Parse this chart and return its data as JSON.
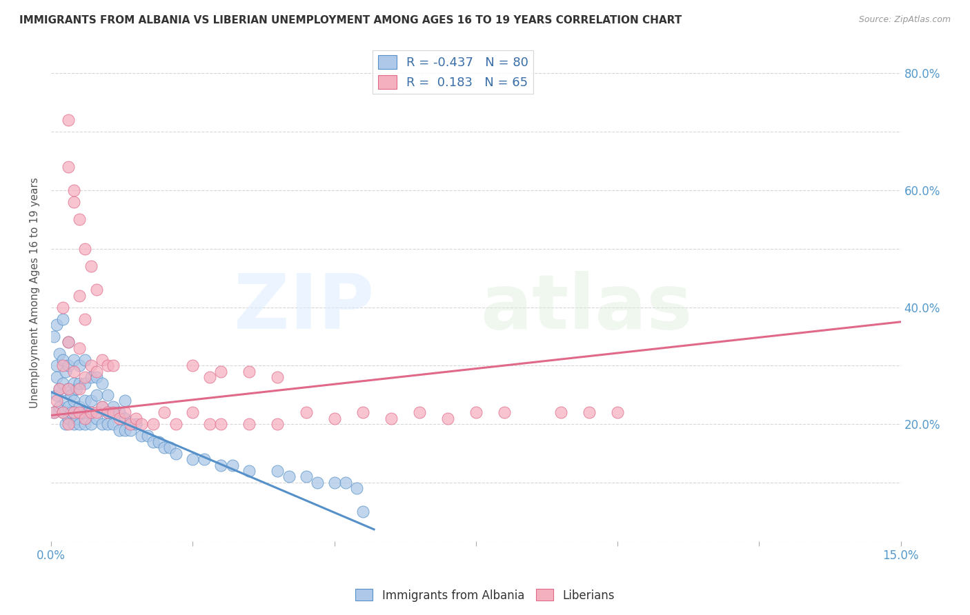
{
  "title": "IMMIGRANTS FROM ALBANIA VS LIBERIAN UNEMPLOYMENT AMONG AGES 16 TO 19 YEARS CORRELATION CHART",
  "source": "Source: ZipAtlas.com",
  "ylabel": "Unemployment Among Ages 16 to 19 years",
  "xlim": [
    0.0,
    0.15
  ],
  "ylim": [
    0.0,
    0.85
  ],
  "albania_R": -0.437,
  "albania_N": 80,
  "liberian_R": 0.183,
  "liberian_N": 65,
  "albania_color": "#adc8e8",
  "albania_edge_color": "#5590c8",
  "liberian_color": "#f5b0c0",
  "liberian_edge_color": "#e06888",
  "background_color": "#ffffff",
  "albania_scatter_x": [
    0.0005,
    0.001,
    0.001,
    0.001,
    0.0015,
    0.0015,
    0.0015,
    0.002,
    0.002,
    0.002,
    0.0025,
    0.0025,
    0.0025,
    0.003,
    0.003,
    0.003,
    0.003,
    0.003,
    0.0035,
    0.0035,
    0.004,
    0.004,
    0.004,
    0.004,
    0.0045,
    0.0045,
    0.005,
    0.005,
    0.005,
    0.005,
    0.0055,
    0.006,
    0.006,
    0.006,
    0.006,
    0.0065,
    0.007,
    0.007,
    0.007,
    0.008,
    0.008,
    0.008,
    0.009,
    0.009,
    0.009,
    0.01,
    0.01,
    0.01,
    0.011,
    0.011,
    0.012,
    0.012,
    0.013,
    0.013,
    0.013,
    0.014,
    0.015,
    0.016,
    0.017,
    0.018,
    0.019,
    0.02,
    0.021,
    0.022,
    0.025,
    0.027,
    0.03,
    0.032,
    0.035,
    0.04,
    0.042,
    0.045,
    0.047,
    0.05,
    0.052,
    0.054,
    0.055,
    0.0005,
    0.001,
    0.002
  ],
  "albania_scatter_y": [
    0.22,
    0.25,
    0.28,
    0.3,
    0.23,
    0.26,
    0.32,
    0.22,
    0.27,
    0.31,
    0.2,
    0.24,
    0.29,
    0.21,
    0.23,
    0.26,
    0.3,
    0.34,
    0.22,
    0.25,
    0.2,
    0.24,
    0.27,
    0.31,
    0.21,
    0.26,
    0.2,
    0.23,
    0.27,
    0.3,
    0.22,
    0.2,
    0.24,
    0.27,
    0.31,
    0.22,
    0.2,
    0.24,
    0.28,
    0.21,
    0.25,
    0.28,
    0.2,
    0.23,
    0.27,
    0.2,
    0.22,
    0.25,
    0.2,
    0.23,
    0.19,
    0.22,
    0.19,
    0.21,
    0.24,
    0.19,
    0.2,
    0.18,
    0.18,
    0.17,
    0.17,
    0.16,
    0.16,
    0.15,
    0.14,
    0.14,
    0.13,
    0.13,
    0.12,
    0.12,
    0.11,
    0.11,
    0.1,
    0.1,
    0.1,
    0.09,
    0.05,
    0.35,
    0.37,
    0.38
  ],
  "liberian_scatter_x": [
    0.0005,
    0.001,
    0.0015,
    0.002,
    0.002,
    0.003,
    0.003,
    0.003,
    0.004,
    0.004,
    0.005,
    0.005,
    0.005,
    0.006,
    0.006,
    0.007,
    0.007,
    0.008,
    0.008,
    0.009,
    0.009,
    0.01,
    0.01,
    0.011,
    0.011,
    0.012,
    0.013,
    0.014,
    0.015,
    0.016,
    0.018,
    0.02,
    0.022,
    0.025,
    0.025,
    0.028,
    0.028,
    0.03,
    0.03,
    0.035,
    0.035,
    0.04,
    0.04,
    0.045,
    0.05,
    0.055,
    0.06,
    0.065,
    0.07,
    0.075,
    0.08,
    0.09,
    0.095,
    0.1,
    0.003,
    0.004,
    0.005,
    0.006,
    0.007,
    0.008,
    0.003,
    0.004,
    0.005,
    0.006,
    0.002
  ],
  "liberian_scatter_y": [
    0.22,
    0.24,
    0.26,
    0.22,
    0.3,
    0.2,
    0.26,
    0.34,
    0.22,
    0.29,
    0.22,
    0.26,
    0.33,
    0.21,
    0.28,
    0.22,
    0.3,
    0.22,
    0.29,
    0.23,
    0.31,
    0.22,
    0.3,
    0.22,
    0.3,
    0.21,
    0.22,
    0.2,
    0.21,
    0.2,
    0.2,
    0.22,
    0.2,
    0.22,
    0.3,
    0.2,
    0.28,
    0.2,
    0.29,
    0.2,
    0.29,
    0.2,
    0.28,
    0.22,
    0.21,
    0.22,
    0.21,
    0.22,
    0.21,
    0.22,
    0.22,
    0.22,
    0.22,
    0.22,
    0.64,
    0.58,
    0.55,
    0.5,
    0.47,
    0.43,
    0.72,
    0.6,
    0.42,
    0.38,
    0.4
  ],
  "albania_trend_x": [
    0.0,
    0.057
  ],
  "albania_trend_y": [
    0.255,
    0.02
  ],
  "liberian_trend_x": [
    0.0,
    0.15
  ],
  "liberian_trend_y": [
    0.215,
    0.375
  ],
  "right_yticks": [
    0.2,
    0.4,
    0.6,
    0.8
  ],
  "right_ylabels": [
    "20.0%",
    "40.0%",
    "60.0%",
    "80.0%"
  ]
}
